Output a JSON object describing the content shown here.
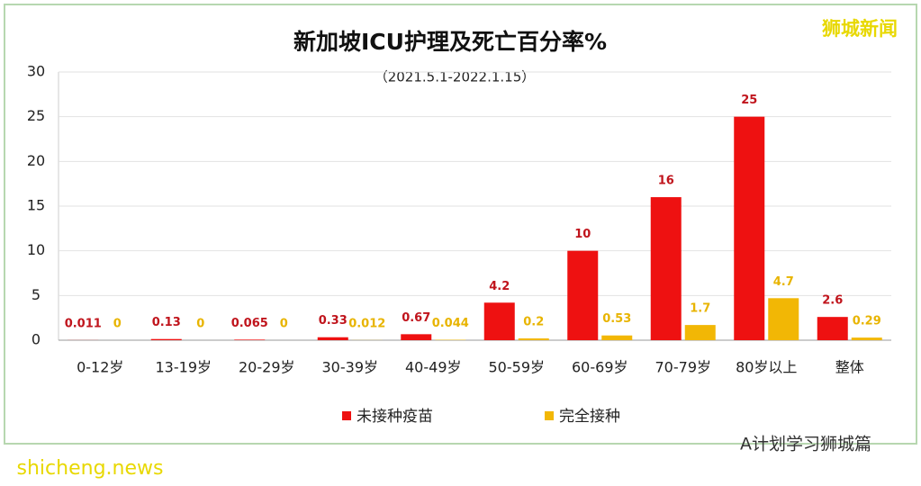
{
  "chart_data": {
    "type": "bar",
    "title": "新加坡ICU护理及死亡百分率%",
    "subtitle": "（2021.5.1-2022.1.15）",
    "categories": [
      "0-12岁",
      "13-19岁",
      "20-29岁",
      "30-39岁",
      "40-49岁",
      "50-59岁",
      "60-69岁",
      "70-79岁",
      "80岁以上",
      "整体"
    ],
    "series": [
      {
        "name": "未接种疫苗",
        "color": "#ee1111",
        "values": [
          0.011,
          0.13,
          0.065,
          0.33,
          0.67,
          4.2,
          10,
          16,
          25,
          2.6
        ]
      },
      {
        "name": "完全接种",
        "color": "#f2b705",
        "values": [
          0,
          0,
          0,
          0.012,
          0.044,
          0.2,
          0.53,
          1.7,
          4.7,
          0.29
        ]
      }
    ],
    "ylim": [
      0,
      30
    ],
    "yticks": [
      0,
      5,
      10,
      15,
      20,
      25,
      30
    ],
    "grid": true
  },
  "watermarks": [
    "狮城新闻",
    "A计划学习狮城篇",
    "shicheng.news"
  ]
}
